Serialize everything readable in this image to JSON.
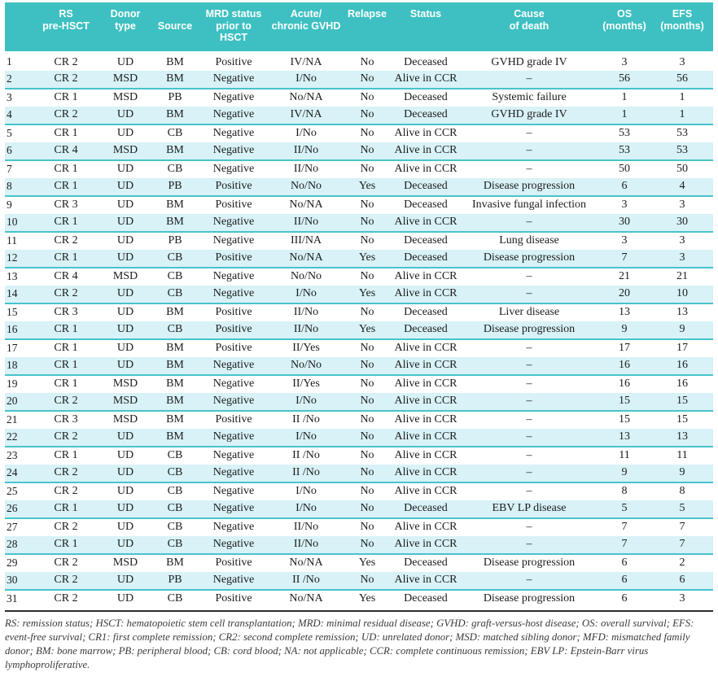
{
  "colors": {
    "header_bg": "#3ec0c2",
    "header_text": "#ffffff",
    "row_alt_bg": "#d8f2f7",
    "row_rule": "#49c3cb",
    "body_text": "#1c1c1c",
    "footnote_text": "#3a3a3a",
    "dark_rule": "#2b2b2b"
  },
  "table": {
    "columns": [
      {
        "key": "num",
        "label": ""
      },
      {
        "key": "rs",
        "label": "RS\npre-HSCT"
      },
      {
        "key": "donor",
        "label": "Donor\ntype"
      },
      {
        "key": "source",
        "label": "\nSource"
      },
      {
        "key": "mrd",
        "label": "MRD status\nprior to\nHSCT"
      },
      {
        "key": "gvhd",
        "label": "Acute/\nchronic GVHD"
      },
      {
        "key": "relapse",
        "label": "Relapse"
      },
      {
        "key": "status",
        "label": "Status"
      },
      {
        "key": "cause",
        "label": "Cause\nof death"
      },
      {
        "key": "os",
        "label": "OS\n(months)"
      },
      {
        "key": "efs",
        "label": "EFS\n(months)"
      }
    ],
    "rows": [
      [
        "1",
        "CR 2",
        "UD",
        "BM",
        "Positive",
        "IV/NA",
        "No",
        "Deceased",
        "GVHD grade IV",
        "3",
        "3"
      ],
      [
        "2",
        "CR 2",
        "MSD",
        "BM",
        "Negative",
        "I/No",
        "No",
        "Alive in CCR",
        "–",
        "56",
        "56"
      ],
      [
        "3",
        "CR 1",
        "MSD",
        "PB",
        "Negative",
        "No/NA",
        "No",
        "Deceased",
        "Systemic failure",
        "1",
        "1"
      ],
      [
        "4",
        "CR 2",
        "UD",
        "BM",
        "Negative",
        "IV/NA",
        "No",
        "Deceased",
        "GVHD grade IV",
        "1",
        "1"
      ],
      [
        "5",
        "CR 1",
        "UD",
        "CB",
        "Negative",
        "I/No",
        "No",
        "Alive in CCR",
        "–",
        "53",
        "53"
      ],
      [
        "6",
        "CR 4",
        "MSD",
        "BM",
        "Negative",
        "II/No",
        "No",
        "Alive in CCR",
        "–",
        "53",
        "53"
      ],
      [
        "7",
        "CR 1",
        "UD",
        "CB",
        "Negative",
        "II/No",
        "No",
        "Alive in CCR",
        "–",
        "50",
        "50"
      ],
      [
        "8",
        "CR 1",
        "UD",
        "PB",
        "Positive",
        "No/No",
        "Yes",
        "Deceased",
        "Disease progression",
        "6",
        "4"
      ],
      [
        "9",
        "CR 3",
        "UD",
        "BM",
        "Positive",
        "No/NA",
        "No",
        "Deceased",
        "Invasive fungal infection",
        "3",
        "3"
      ],
      [
        "10",
        "CR 1",
        "UD",
        "BM",
        "Negative",
        "II/No",
        "No",
        "Alive in CCR",
        "–",
        "30",
        "30"
      ],
      [
        "11",
        "CR 2",
        "UD",
        "PB",
        "Negative",
        "III/NA",
        "No",
        "Deceased",
        "Lung disease",
        "3",
        "3"
      ],
      [
        "12",
        "CR 1",
        "UD",
        "CB",
        "Positive",
        "No/NA",
        "Yes",
        "Deceased",
        "Disease progression",
        "7",
        "3"
      ],
      [
        "13",
        "CR 4",
        "MSD",
        "CB",
        "Negative",
        "No/No",
        "No",
        "Alive in CCR",
        "–",
        "21",
        "21"
      ],
      [
        "14",
        "CR 2",
        "UD",
        "CB",
        "Negative",
        "I/No",
        "Yes",
        "Alive in CCR",
        "–",
        "20",
        "10"
      ],
      [
        "15",
        "CR 3",
        "UD",
        "BM",
        "Positive",
        "II/No",
        "No",
        "Deceased",
        "Liver disease",
        "13",
        "13"
      ],
      [
        "16",
        "CR 1",
        "UD",
        "CB",
        "Positive",
        "II/No",
        "Yes",
        "Deceased",
        "Disease progression",
        "9",
        "9"
      ],
      [
        "17",
        "CR 1",
        "UD",
        "BM",
        "Positive",
        "II/Yes",
        "No",
        "Alive in CCR",
        "–",
        "17",
        "17"
      ],
      [
        "18",
        "CR 1",
        "UD",
        "BM",
        "Negative",
        "No/No",
        "No",
        "Alive in CCR",
        "–",
        "16",
        "16"
      ],
      [
        "19",
        "CR 1",
        "MSD",
        "BM",
        "Negative",
        "II/Yes",
        "No",
        "Alive in CCR",
        "–",
        "16",
        "16"
      ],
      [
        "20",
        "CR 2",
        "MSD",
        "BM",
        "Negative",
        "I/No",
        "No",
        "Alive in CCR",
        "–",
        "15",
        "15"
      ],
      [
        "21",
        "CR 3",
        "MSD",
        "BM",
        "Positive",
        "II /No",
        "No",
        "Alive in CCR",
        "–",
        "15",
        "15"
      ],
      [
        "22",
        "CR 2",
        "UD",
        "BM",
        "Negative",
        "I/No",
        "No",
        "Alive in CCR",
        "–",
        "13",
        "13"
      ],
      [
        "23",
        "CR 1",
        "UD",
        "CB",
        "Negative",
        "II /No",
        "No",
        "Alive in CCR",
        "–",
        "11",
        "11"
      ],
      [
        "24",
        "CR 2",
        "UD",
        "CB",
        "Negative",
        "II /No",
        "No",
        "Alive in CCR",
        "–",
        "9",
        "9"
      ],
      [
        "25",
        "CR 2",
        "UD",
        "CB",
        "Negative",
        "I/No",
        "No",
        "Alive in CCR",
        "–",
        "8",
        "8"
      ],
      [
        "26",
        "CR 1",
        "UD",
        "CB",
        "Negative",
        "I/No",
        "No",
        "Deceased",
        "EBV LP disease",
        "5",
        "5"
      ],
      [
        "27",
        "CR 2",
        "UD",
        "CB",
        "Negative",
        "II/No",
        "No",
        "Alive in CCR",
        "–",
        "7",
        "7"
      ],
      [
        "28",
        "CR 1",
        "UD",
        "CB",
        "Negative",
        "II/No",
        "No",
        "Alive in CCR",
        "–",
        "7",
        "7"
      ],
      [
        "29",
        "CR 2",
        "MSD",
        "BM",
        "Positive",
        "No/NA",
        "Yes",
        "Deceased",
        "Disease progression",
        "6",
        "2"
      ],
      [
        "30",
        "CR 2",
        "UD",
        "PB",
        "Negative",
        "II /No",
        "No",
        "Alive in CCR",
        "–",
        "6",
        "6"
      ],
      [
        "31",
        "CR 2",
        "UD",
        "CB",
        "Positive",
        "No/NA",
        "Yes",
        "Deceased",
        "Disease progression",
        "6",
        "3"
      ]
    ]
  },
  "footnote": "RS: remission status; HSCT: hematopoietic stem cell transplantation; MRD: minimal residual disease; GVHD: graft-versus-host disease; OS: overall survival; EFS: event-free survival; CR1: first complete remission; CR2: second complete remission; UD: unrelated donor; MSD: matched sibling donor; MFD: mismatched family donor; BM: bone marrow; PB: peripheral blood; CB: cord blood; NA: not applicable; CCR: complete continuous remission; EBV LP: Epstein-Barr virus lymphoproliferative."
}
